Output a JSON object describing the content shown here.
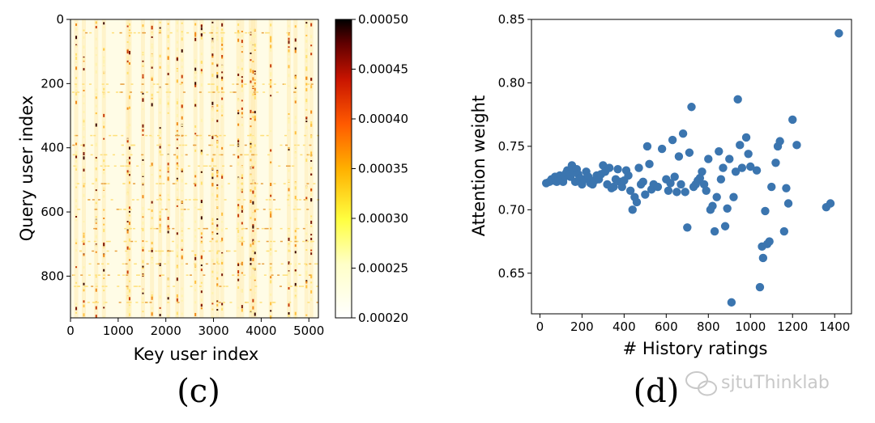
{
  "panel_c": {
    "caption": "(c)",
    "xlabel": "Key user index",
    "ylabel": "Query user index",
    "xticks": [
      "0",
      "1000",
      "2000",
      "3000",
      "4000",
      "5000"
    ],
    "yticks": [
      "0",
      "200",
      "400",
      "600",
      "800"
    ],
    "colorbar_ticks": [
      "0.00050",
      "0.00045",
      "0.00040",
      "0.00035",
      "0.00030",
      "0.00025",
      "0.00020"
    ]
  },
  "panel_d": {
    "caption": "(d)",
    "xlabel": "# History ratings",
    "ylabel": "Attention weight",
    "xticks": [
      "0",
      "200",
      "400",
      "600",
      "800",
      "1000",
      "1200",
      "1400"
    ],
    "yticks": [
      "0.85",
      "0.80",
      "0.75",
      "0.70",
      "0.65"
    ]
  },
  "watermark": "sjtuThinklab",
  "colors": {
    "points": "#3b75af"
  },
  "chart_data": [
    {
      "type": "heatmap",
      "title": "",
      "xlabel": "Key user index",
      "ylabel": "Query user index",
      "xlim": [
        0,
        5200
      ],
      "ylim": [
        930,
        0
      ],
      "colorbar": {
        "min": 0.0002,
        "max": 0.0005,
        "cmap": "afmhot_r"
      },
      "hot_columns_key_user_index": [
        120,
        280,
        540,
        700,
        1200,
        1240,
        1520,
        1710,
        1880,
        2050,
        2240,
        2340,
        2620,
        2750,
        2980,
        3080,
        3180,
        3520,
        3600,
        3780,
        3830,
        3870,
        4200,
        4580,
        4720,
        4950,
        5050
      ],
      "hot_rows_query_user_index": [
        40,
        200,
        225,
        360,
        390,
        420,
        455,
        510,
        560,
        590,
        650,
        690,
        720,
        760,
        795,
        830,
        880
      ]
    },
    {
      "type": "scatter",
      "title": "",
      "xlabel": "# History ratings",
      "ylabel": "Attention weight",
      "xlim": [
        -40,
        1480
      ],
      "ylim": [
        0.618,
        0.85
      ],
      "x": [
        30,
        45,
        55,
        65,
        72,
        80,
        88,
        95,
        102,
        110,
        118,
        125,
        130,
        138,
        145,
        152,
        160,
        168,
        175,
        182,
        190,
        200,
        210,
        220,
        230,
        240,
        250,
        260,
        270,
        280,
        290,
        300,
        310,
        320,
        330,
        340,
        350,
        360,
        370,
        380,
        390,
        400,
        410,
        420,
        430,
        440,
        450,
        460,
        470,
        480,
        490,
        500,
        510,
        520,
        530,
        540,
        560,
        580,
        600,
        610,
        620,
        630,
        640,
        650,
        660,
        670,
        680,
        690,
        700,
        710,
        720,
        730,
        740,
        750,
        760,
        770,
        780,
        790,
        800,
        810,
        820,
        830,
        840,
        850,
        860,
        870,
        880,
        890,
        900,
        910,
        920,
        930,
        940,
        950,
        960,
        980,
        990,
        1000,
        1030,
        1045,
        1055,
        1060,
        1070,
        1080,
        1090,
        1100,
        1120,
        1130,
        1140,
        1160,
        1170,
        1180,
        1200,
        1220,
        1360,
        1380,
        1420
      ],
      "y": [
        0.721,
        0.722,
        0.724,
        0.723,
        0.726,
        0.722,
        0.725,
        0.727,
        0.724,
        0.722,
        0.726,
        0.729,
        0.731,
        0.728,
        0.726,
        0.735,
        0.73,
        0.722,
        0.732,
        0.728,
        0.725,
        0.72,
        0.724,
        0.73,
        0.726,
        0.721,
        0.72,
        0.723,
        0.727,
        0.724,
        0.728,
        0.735,
        0.73,
        0.72,
        0.733,
        0.717,
        0.718,
        0.724,
        0.732,
        0.722,
        0.718,
        0.723,
        0.731,
        0.727,
        0.715,
        0.7,
        0.71,
        0.706,
        0.733,
        0.72,
        0.722,
        0.712,
        0.75,
        0.736,
        0.716,
        0.72,
        0.718,
        0.748,
        0.724,
        0.715,
        0.721,
        0.755,
        0.726,
        0.714,
        0.742,
        0.72,
        0.76,
        0.714,
        0.686,
        0.745,
        0.781,
        0.718,
        0.72,
        0.723,
        0.725,
        0.73,
        0.72,
        0.715,
        0.74,
        0.7,
        0.703,
        0.683,
        0.71,
        0.746,
        0.724,
        0.733,
        0.687,
        0.701,
        0.74,
        0.627,
        0.71,
        0.73,
        0.787,
        0.751,
        0.733,
        0.757,
        0.744,
        0.734,
        0.731,
        0.639,
        0.671,
        0.662,
        0.699,
        0.673,
        0.675,
        0.718,
        0.737,
        0.75,
        0.754,
        0.683,
        0.717,
        0.705,
        0.771,
        0.751,
        0.702,
        0.705,
        0.839
      ]
    }
  ]
}
